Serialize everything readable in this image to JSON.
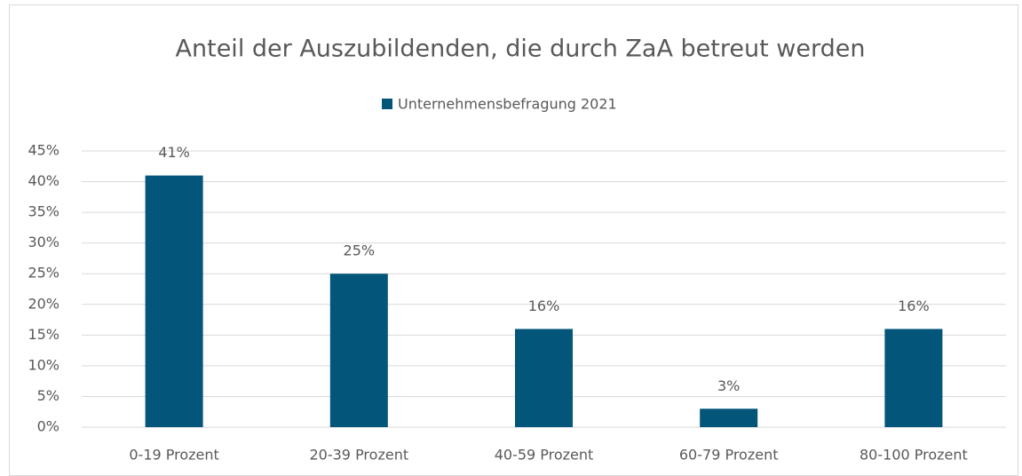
{
  "chart_data": {
    "type": "bar",
    "title": "Anteil der Auszubildenden, die durch ZaA betreut werden",
    "categories": [
      "0-19 Prozent",
      "20-39 Prozent",
      "40-59 Prozent",
      "60-79 Prozent",
      "80-100 Prozent"
    ],
    "series": [
      {
        "name": "Unternehmensbefragung 2021",
        "color": "#03557a",
        "values": [
          41,
          25,
          16,
          3,
          16
        ],
        "value_labels": [
          "41%",
          "25%",
          "16%",
          "3%",
          "16%"
        ]
      }
    ],
    "ylim": [
      0,
      45
    ],
    "yticks": [
      {
        "value": 0,
        "label": "0%"
      },
      {
        "value": 5,
        "label": "5%"
      },
      {
        "value": 10,
        "label": "10%"
      },
      {
        "value": 15,
        "label": "15%"
      },
      {
        "value": 20,
        "label": "20%"
      },
      {
        "value": 25,
        "label": "25%"
      },
      {
        "value": 30,
        "label": "30%"
      },
      {
        "value": 35,
        "label": "35%"
      },
      {
        "value": 40,
        "label": "40%"
      },
      {
        "value": 45,
        "label": "45%"
      }
    ],
    "grid": true,
    "legend": "top"
  }
}
